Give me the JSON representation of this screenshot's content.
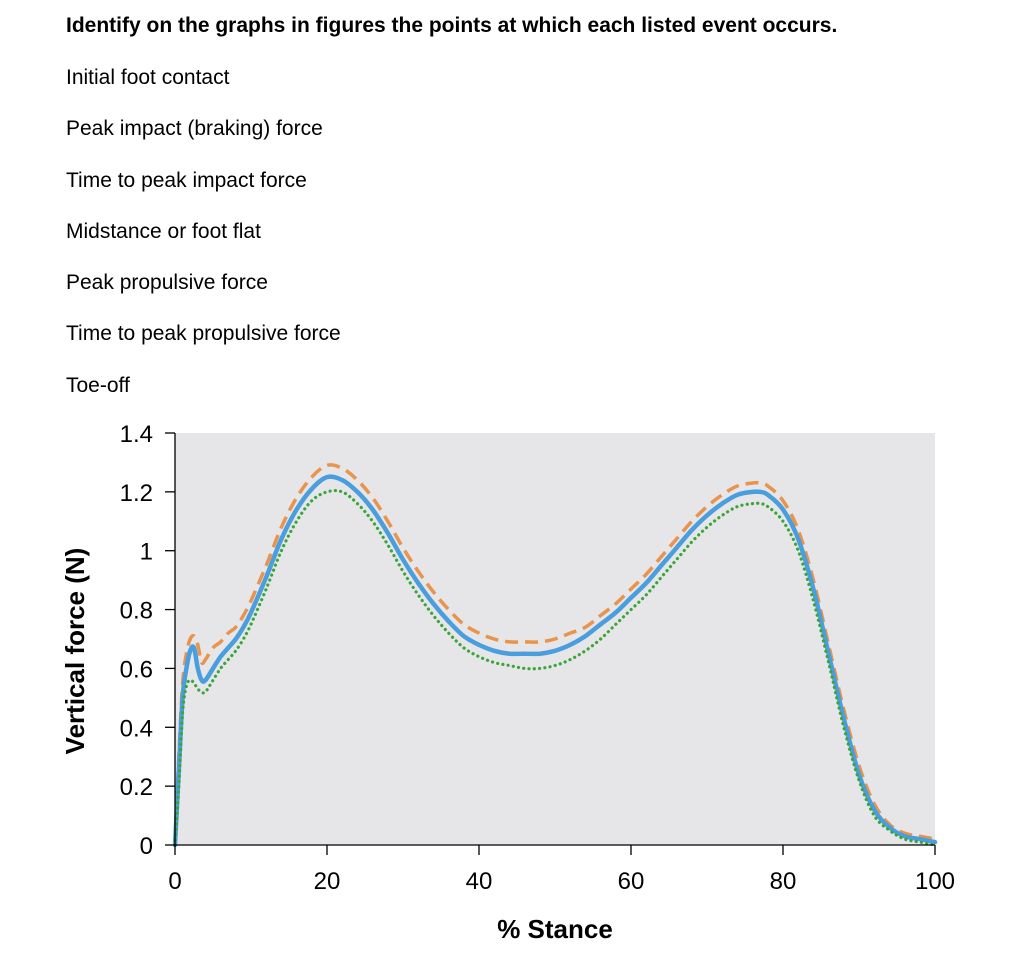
{
  "question": "Identify on the graphs in figures the points at which each listed event occurs.",
  "events": [
    "Initial foot contact",
    "Peak impact (braking) force",
    "Time to peak impact force",
    "Midstance or foot flat",
    "Peak propulsive force",
    "Time to peak propulsive force",
    "Toe-off"
  ],
  "colors": {
    "plot_background": "#e6e6e9",
    "series_solid": "#4a9ede",
    "series_dashed": "#e8944c",
    "series_dotted": "#3aa63a"
  },
  "chart_data": {
    "type": "line",
    "title": "",
    "xlabel": "% Stance",
    "ylabel": "Vertical force (N)",
    "xlim": [
      0,
      100
    ],
    "ylim": [
      0,
      1.4
    ],
    "xticks": [
      "0",
      "20",
      "40",
      "60",
      "80",
      "100"
    ],
    "yticks": [
      "0",
      "0.2",
      "0.4",
      "0.6",
      "0.8",
      "1",
      "1.2",
      "1.4"
    ],
    "grid": false,
    "legend": "none",
    "series": [
      {
        "style": "dashed",
        "color": "#e8944c",
        "x": [
          0,
          0.5,
          1,
          1.5,
          2,
          2.5,
          3,
          3.5,
          4,
          5,
          6,
          7,
          8,
          9,
          10,
          12,
          14,
          16,
          18,
          20,
          22,
          24,
          26,
          28,
          30,
          32,
          34,
          36,
          38,
          40,
          42,
          44,
          46,
          48,
          50,
          52,
          54,
          56,
          58,
          60,
          62,
          64,
          66,
          68,
          70,
          72,
          74,
          76,
          77,
          78,
          80,
          82,
          84,
          86,
          88,
          90,
          92,
          94,
          96,
          98,
          100
        ],
        "y": [
          0.0,
          0.3,
          0.55,
          0.65,
          0.7,
          0.71,
          0.68,
          0.62,
          0.63,
          0.67,
          0.69,
          0.72,
          0.74,
          0.78,
          0.83,
          0.95,
          1.08,
          1.18,
          1.25,
          1.29,
          1.28,
          1.24,
          1.18,
          1.1,
          1.01,
          0.93,
          0.86,
          0.8,
          0.75,
          0.72,
          0.7,
          0.69,
          0.69,
          0.69,
          0.7,
          0.72,
          0.74,
          0.78,
          0.82,
          0.87,
          0.92,
          0.98,
          1.04,
          1.1,
          1.15,
          1.19,
          1.22,
          1.23,
          1.23,
          1.22,
          1.17,
          1.07,
          0.9,
          0.68,
          0.46,
          0.27,
          0.14,
          0.07,
          0.04,
          0.03,
          0.02
        ]
      },
      {
        "style": "solid",
        "color": "#4a9ede",
        "x": [
          0,
          0.5,
          1,
          1.5,
          2,
          2.5,
          3,
          3.5,
          4,
          5,
          6,
          7,
          8,
          9,
          10,
          12,
          14,
          16,
          18,
          20,
          22,
          24,
          26,
          28,
          30,
          32,
          34,
          36,
          38,
          40,
          42,
          44,
          46,
          48,
          50,
          52,
          54,
          56,
          58,
          60,
          62,
          64,
          66,
          68,
          70,
          72,
          74,
          76,
          77,
          78,
          80,
          82,
          84,
          86,
          88,
          90,
          92,
          94,
          96,
          98,
          100
        ],
        "y": [
          0.0,
          0.25,
          0.5,
          0.6,
          0.66,
          0.67,
          0.6,
          0.56,
          0.56,
          0.6,
          0.64,
          0.67,
          0.7,
          0.74,
          0.79,
          0.91,
          1.04,
          1.14,
          1.21,
          1.25,
          1.24,
          1.2,
          1.14,
          1.06,
          0.97,
          0.89,
          0.82,
          0.76,
          0.71,
          0.68,
          0.66,
          0.65,
          0.65,
          0.65,
          0.66,
          0.68,
          0.71,
          0.75,
          0.79,
          0.84,
          0.89,
          0.95,
          1.01,
          1.07,
          1.12,
          1.16,
          1.19,
          1.2,
          1.2,
          1.19,
          1.14,
          1.04,
          0.87,
          0.65,
          0.43,
          0.24,
          0.12,
          0.06,
          0.03,
          0.02,
          0.01
        ]
      },
      {
        "style": "dotted",
        "color": "#3aa63a",
        "x": [
          0,
          0.5,
          1,
          1.5,
          2,
          2.5,
          3,
          3.5,
          4,
          5,
          6,
          7,
          8,
          9,
          10,
          12,
          14,
          16,
          18,
          20,
          22,
          24,
          26,
          28,
          30,
          32,
          34,
          36,
          38,
          40,
          42,
          44,
          46,
          48,
          50,
          52,
          54,
          56,
          58,
          60,
          62,
          64,
          66,
          68,
          70,
          72,
          74,
          76,
          77,
          78,
          80,
          82,
          84,
          86,
          88,
          90,
          92,
          94,
          96,
          98,
          100
        ],
        "y": [
          0.0,
          0.2,
          0.45,
          0.54,
          0.56,
          0.55,
          0.53,
          0.52,
          0.52,
          0.56,
          0.6,
          0.63,
          0.66,
          0.7,
          0.75,
          0.87,
          1.0,
          1.1,
          1.17,
          1.2,
          1.2,
          1.16,
          1.1,
          1.02,
          0.93,
          0.85,
          0.78,
          0.72,
          0.67,
          0.64,
          0.62,
          0.61,
          0.6,
          0.6,
          0.61,
          0.63,
          0.66,
          0.7,
          0.75,
          0.8,
          0.85,
          0.91,
          0.97,
          1.03,
          1.08,
          1.12,
          1.15,
          1.16,
          1.16,
          1.15,
          1.1,
          1.0,
          0.83,
          0.62,
          0.4,
          0.22,
          0.1,
          0.05,
          0.02,
          0.01,
          0.0
        ]
      }
    ]
  }
}
